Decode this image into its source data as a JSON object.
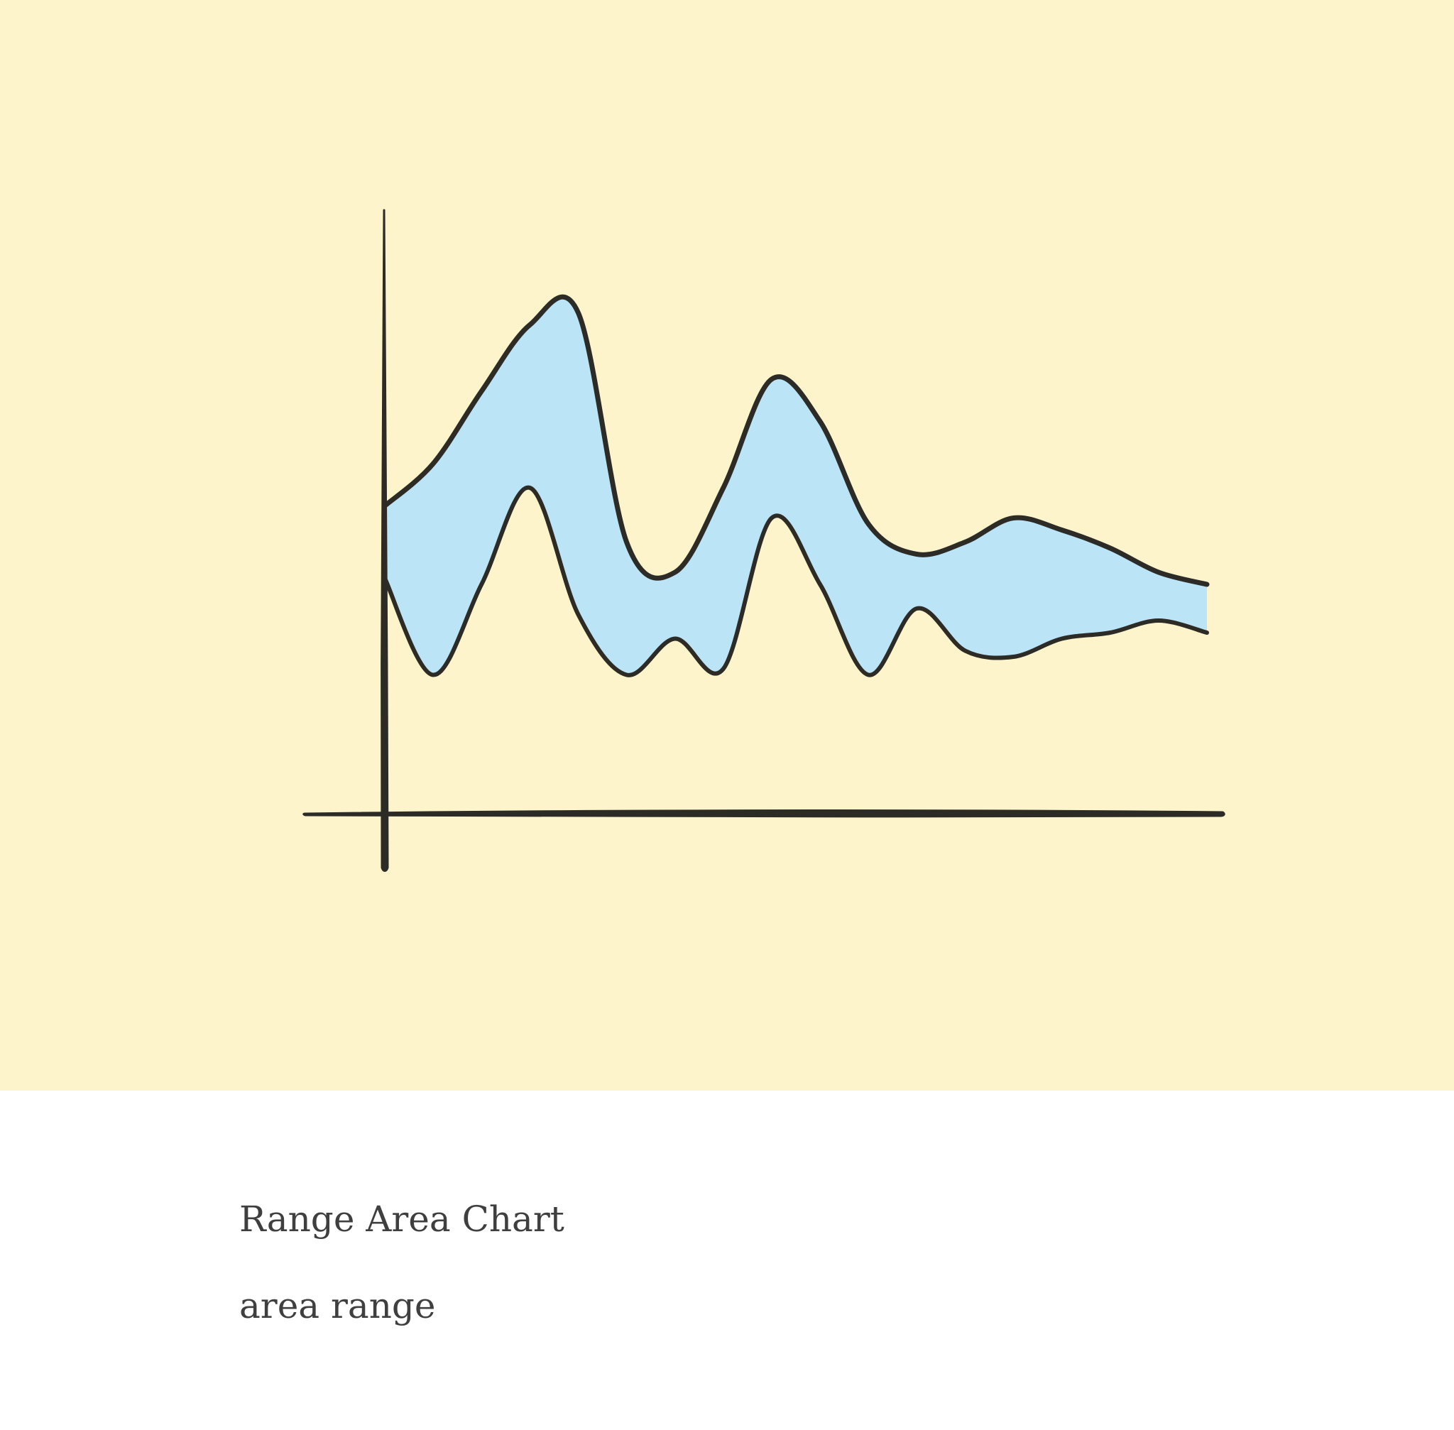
{
  "card": {
    "background": "#fdf4cc",
    "title": "Range Area Chart",
    "subtitle": "area range"
  },
  "chart_data": {
    "type": "area",
    "title": "",
    "xlabel": "",
    "ylabel": "",
    "grid": false,
    "legend": "none",
    "xlim": [
      0,
      18
    ],
    "ylim": [
      0,
      10
    ],
    "x": [
      0,
      1,
      2,
      3,
      4,
      5,
      6,
      7,
      8,
      9,
      10,
      11,
      12,
      13,
      14,
      15,
      16,
      17
    ],
    "series": [
      {
        "role": "upper",
        "values": [
          5.1,
          5.8,
          7.0,
          8.1,
          8.3,
          4.5,
          4.0,
          5.4,
          7.2,
          6.5,
          4.8,
          4.3,
          4.5,
          4.9,
          4.7,
          4.4,
          4.0,
          3.8
        ]
      },
      {
        "role": "lower",
        "values": [
          3.9,
          2.3,
          3.8,
          5.4,
          3.3,
          2.3,
          2.9,
          2.4,
          4.9,
          3.8,
          2.3,
          3.4,
          2.7,
          2.6,
          2.9,
          3.0,
          3.2,
          3.0
        ]
      }
    ],
    "colors": {
      "fill": "#bce4f7",
      "stroke": "#2c2b26",
      "axis": "#2c2b26"
    }
  }
}
